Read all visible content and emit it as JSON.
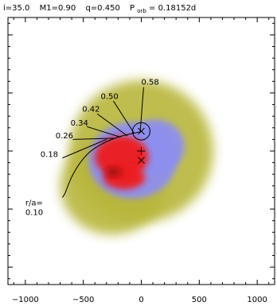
{
  "header": {
    "parts": [
      {
        "text": "i=35.0"
      },
      {
        "text": "M1=0.90"
      },
      {
        "text": "q=0.450"
      },
      {
        "text": "P",
        "sub": "orb",
        "suffix": "= 0.18152d"
      }
    ]
  },
  "chart_data": {
    "type": "heatmap",
    "title": "i=35.0   M1=0.90   q=0.450   Porb= 0.18152d",
    "xlabel": "",
    "ylabel": "",
    "xlim": [
      -1150,
      1150
    ],
    "ylim": [
      -1150,
      1150
    ],
    "x_ticks": [
      {
        "value": -1000,
        "label": "−1000"
      },
      {
        "value": -500,
        "label": "−500"
      },
      {
        "value": 0,
        "label": "0"
      },
      {
        "value": 500,
        "label": "500"
      },
      {
        "value": 1000,
        "label": "1000"
      }
    ],
    "y_ticks": [
      -1000,
      -500,
      0,
      500,
      1000
    ],
    "y_tick_labels_shown": false,
    "colors": {
      "low": "#b8b63a",
      "mid": "#8e8ef0",
      "high": "#ee1a1a",
      "peak": "#a01010"
    },
    "intensity_blobs": [
      {
        "level": "low",
        "cx": 0,
        "cy": 0,
        "rx": 620,
        "ry": 610
      },
      {
        "level": "low",
        "cx": -250,
        "cy": -300,
        "rx": 450,
        "ry": 420
      },
      {
        "level": "mid",
        "cx": -80,
        "cy": -80,
        "rx": 380,
        "ry": 330
      },
      {
        "level": "mid",
        "cx": 120,
        "cy": 40,
        "rx": 250,
        "ry": 230
      },
      {
        "level": "high",
        "cx": -170,
        "cy": -50,
        "rx": 230,
        "ry": 180
      },
      {
        "level": "high",
        "cx": -150,
        "cy": -230,
        "rx": 180,
        "ry": 100
      },
      {
        "level": "peak",
        "cx": -240,
        "cy": -180,
        "rx": 70,
        "ry": 40
      }
    ],
    "secondary_star_lobe": {
      "cx": 0,
      "cy": 170,
      "r": 75
    },
    "markers": [
      {
        "symbol": "x",
        "x": 0,
        "y": 170
      },
      {
        "symbol": "+",
        "x": 0,
        "y": 0
      },
      {
        "symbol": "x",
        "x": 0,
        "y": -80
      }
    ],
    "stream_labels": [
      {
        "label": "r/a=",
        "label2": "0.10",
        "x": -1000,
        "y": -470,
        "px": -660,
        "py": -370,
        "lx": -680,
        "ly": -400
      },
      {
        "label": "0.18",
        "x": -870,
        "y": -50,
        "px": -300,
        "py": 100,
        "lx": -680,
        "ly": -60
      },
      {
        "label": "0.26",
        "x": -740,
        "y": 110,
        "px": -240,
        "py": 110,
        "lx": -590,
        "ly": 100
      },
      {
        "label": "0.34",
        "x": -610,
        "y": 220,
        "px": -180,
        "py": 120,
        "lx": -470,
        "ly": 210
      },
      {
        "label": "0.42",
        "x": -510,
        "y": 340,
        "px": -120,
        "py": 130,
        "lx": -380,
        "ly": 320
      },
      {
        "label": "0.50",
        "x": -350,
        "y": 450,
        "px": -60,
        "py": 150,
        "lx": -240,
        "ly": 430
      },
      {
        "label": "0.58",
        "x": 0,
        "y": 570,
        "px": -10,
        "py": 160,
        "lx": 20,
        "ly": 550
      }
    ],
    "stream_path": [
      [
        -660,
        -370
      ],
      [
        -590,
        -190
      ],
      [
        -470,
        -20
      ],
      [
        -330,
        70
      ],
      [
        -180,
        130
      ],
      [
        -10,
        165
      ]
    ]
  }
}
